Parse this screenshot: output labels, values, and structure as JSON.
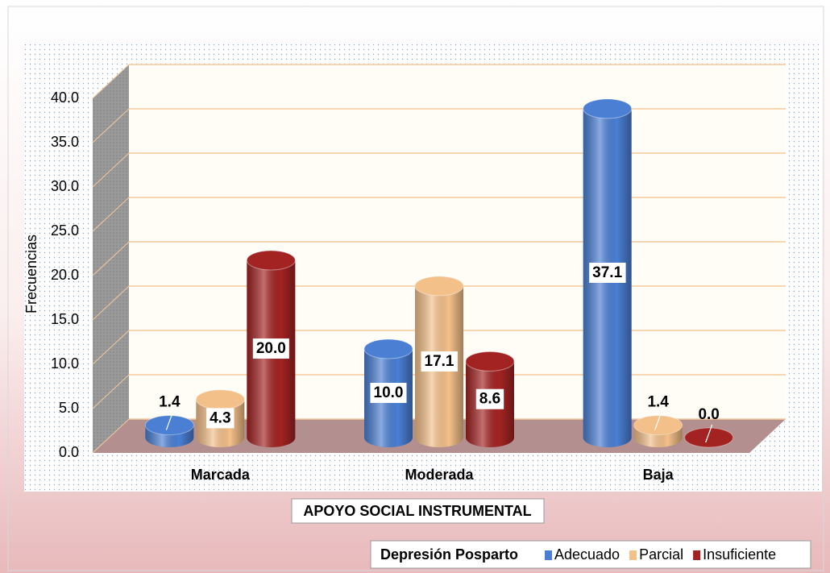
{
  "chart_data": {
    "type": "bar",
    "x_label": "APOYO SOCIAL INSTRUMENTAL",
    "y_label": "Frecuencias",
    "legend_title": "Depresión Posparto",
    "categories": [
      "Marcada",
      "Moderada",
      "Baja"
    ],
    "series": [
      {
        "name": "Adecuado",
        "color": "#4a7fd4",
        "values": [
          1.4,
          10.0,
          37.1
        ],
        "value_labels": [
          "1.4",
          "10.0",
          "37.1"
        ]
      },
      {
        "name": "Parcial",
        "color": "#f4c08a",
        "values": [
          4.3,
          17.1,
          1.4
        ],
        "value_labels": [
          "4.3",
          "17.1",
          "1.4"
        ]
      },
      {
        "name": "Insuficiente",
        "color": "#a32323",
        "values": [
          20.0,
          8.6,
          0.0
        ],
        "value_labels": [
          "20.0",
          "8.6",
          "0.0"
        ]
      }
    ],
    "ylim": [
      0,
      40
    ],
    "yticks": [
      {
        "value": 0,
        "label": "0.0"
      },
      {
        "value": 5,
        "label": "5.0"
      },
      {
        "value": 10,
        "label": "10.0"
      },
      {
        "value": 15,
        "label": "15.0"
      },
      {
        "value": 20,
        "label": "20.0"
      },
      {
        "value": 25,
        "label": "25.0"
      },
      {
        "value": 30,
        "label": "30.0"
      },
      {
        "value": 35,
        "label": "35.0"
      },
      {
        "value": 40,
        "label": "40.0"
      }
    ],
    "grid": true,
    "legend_position": "bottom-right"
  }
}
